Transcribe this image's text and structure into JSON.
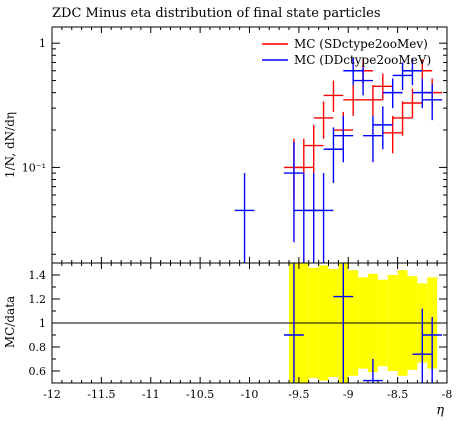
{
  "chart_data": [
    {
      "type": "scatter",
      "panel": "main",
      "title": "ZDC Minus eta distribution of final state particles",
      "ylabel": "1/N, dN/dη",
      "xlim": [
        -12,
        -8
      ],
      "ylim": [
        0.017,
        1.35
      ],
      "yscale": "log",
      "ytick_labels": [
        {
          "value": 1,
          "label": "1"
        },
        {
          "value": 0.1,
          "label": "10⁻¹"
        }
      ],
      "legend_position": "top-right",
      "series": [
        {
          "name": "MC (SDctype2ooMev)",
          "color": "#ff0000",
          "points": [
            {
              "x": -9.55,
              "y": 0.1,
              "lo": 0.055,
              "hi": 0.17
            },
            {
              "x": -9.45,
              "y": 0.1,
              "lo": 0.055,
              "hi": 0.17
            },
            {
              "x": -9.35,
              "y": 0.15,
              "lo": 0.09,
              "hi": 0.22
            },
            {
              "x": -9.25,
              "y": 0.25,
              "lo": 0.17,
              "hi": 0.34
            },
            {
              "x": -9.15,
              "y": 0.38,
              "lo": 0.28,
              "hi": 0.5
            },
            {
              "x": -9.05,
              "y": 0.2,
              "lo": 0.14,
              "hi": 0.28
            },
            {
              "x": -8.95,
              "y": 0.35,
              "lo": 0.26,
              "hi": 0.46
            },
            {
              "x": -8.85,
              "y": 0.6,
              "lo": 0.47,
              "hi": 0.74
            },
            {
              "x": -8.75,
              "y": 0.35,
              "lo": 0.26,
              "hi": 0.46
            },
            {
              "x": -8.65,
              "y": 0.45,
              "lo": 0.35,
              "hi": 0.57
            },
            {
              "x": -8.55,
              "y": 0.19,
              "lo": 0.13,
              "hi": 0.26
            },
            {
              "x": -8.45,
              "y": 0.25,
              "lo": 0.18,
              "hi": 0.34
            },
            {
              "x": -8.35,
              "y": 0.33,
              "lo": 0.25,
              "hi": 0.43
            },
            {
              "x": -8.25,
              "y": 0.6,
              "lo": 0.47,
              "hi": 0.74
            },
            {
              "x": -8.15,
              "y": 0.4,
              "lo": 0.3,
              "hi": 0.52
            }
          ]
        },
        {
          "name": "MC (DDctype2ooMeV)",
          "color": "#0000ff",
          "points": [
            {
              "x": -10.05,
              "y": 0.045,
              "lo": 0.017,
              "hi": 0.09
            },
            {
              "x": -9.55,
              "y": 0.09,
              "lo": 0.025,
              "hi": 0.16
            },
            {
              "x": -9.45,
              "y": 0.045,
              "lo": 0.017,
              "hi": 0.09
            },
            {
              "x": -9.35,
              "y": 0.045,
              "lo": 0.017,
              "hi": 0.09
            },
            {
              "x": -9.25,
              "y": 0.045,
              "lo": 0.017,
              "hi": 0.09
            },
            {
              "x": -9.15,
              "y": 0.14,
              "lo": 0.075,
              "hi": 0.21
            },
            {
              "x": -9.05,
              "y": 0.18,
              "lo": 0.11,
              "hi": 0.26
            },
            {
              "x": -8.95,
              "y": 0.6,
              "lo": 0.46,
              "hi": 0.76
            },
            {
              "x": -8.85,
              "y": 0.5,
              "lo": 0.38,
              "hi": 0.64
            },
            {
              "x": -8.75,
              "y": 0.18,
              "lo": 0.11,
              "hi": 0.26
            },
            {
              "x": -8.65,
              "y": 0.22,
              "lo": 0.14,
              "hi": 0.31
            },
            {
              "x": -8.55,
              "y": 0.4,
              "lo": 0.3,
              "hi": 0.52
            },
            {
              "x": -8.45,
              "y": 0.55,
              "lo": 0.42,
              "hi": 0.7
            },
            {
              "x": -8.35,
              "y": 0.6,
              "lo": 0.46,
              "hi": 0.76
            },
            {
              "x": -8.25,
              "y": 0.4,
              "lo": 0.3,
              "hi": 0.52
            },
            {
              "x": -8.15,
              "y": 0.35,
              "lo": 0.24,
              "hi": 0.47
            }
          ]
        }
      ]
    },
    {
      "type": "scatter",
      "panel": "ratio",
      "ylabel": "MC/data",
      "xlabel": "η",
      "xlim": [
        -12,
        -8
      ],
      "ylim": [
        0.5,
        1.5
      ],
      "x_tick_labels": [
        "-12",
        "-11.5",
        "-11",
        "-10.5",
        "-10",
        "-9.5",
        "-9",
        "-8.5",
        "-8"
      ],
      "y_tick_labels": [
        "0.6",
        "0.8",
        "1",
        "1.2",
        "1.4"
      ],
      "reference_line": 1,
      "band_color": "#ffff00",
      "band": [
        {
          "x0": -9.6,
          "x1": -9.5,
          "lo": 0.5,
          "hi": 1.5
        },
        {
          "x0": -9.5,
          "x1": -9.4,
          "lo": 0.5,
          "hi": 1.5
        },
        {
          "x0": -9.4,
          "x1": -9.3,
          "lo": 0.54,
          "hi": 1.46
        },
        {
          "x0": -9.3,
          "x1": -9.2,
          "lo": 0.52,
          "hi": 1.48
        },
        {
          "x0": -9.2,
          "x1": -9.1,
          "lo": 0.55,
          "hi": 1.45
        },
        {
          "x0": -9.1,
          "x1": -9.0,
          "lo": 0.5,
          "hi": 1.5
        },
        {
          "x0": -9.0,
          "x1": -8.9,
          "lo": 0.56,
          "hi": 1.44
        },
        {
          "x0": -8.9,
          "x1": -8.8,
          "lo": 0.62,
          "hi": 1.38
        },
        {
          "x0": -8.8,
          "x1": -8.7,
          "lo": 0.59,
          "hi": 1.41
        },
        {
          "x0": -8.7,
          "x1": -8.6,
          "lo": 0.64,
          "hi": 1.36
        },
        {
          "x0": -8.6,
          "x1": -8.5,
          "lo": 0.6,
          "hi": 1.4
        },
        {
          "x0": -8.5,
          "x1": -8.4,
          "lo": 0.56,
          "hi": 1.44
        },
        {
          "x0": -8.4,
          "x1": -8.3,
          "lo": 0.61,
          "hi": 1.39
        },
        {
          "x0": -8.3,
          "x1": -8.2,
          "lo": 0.67,
          "hi": 1.33
        },
        {
          "x0": -8.2,
          "x1": -8.1,
          "lo": 0.62,
          "hi": 1.38
        }
      ],
      "series": [
        {
          "name": "MC (DDctype2ooMeV)",
          "color": "#0000ff",
          "points": [
            {
              "x": -9.55,
              "y": 0.9,
              "lo": 0.5,
              "hi": 1.5
            },
            {
              "x": -9.05,
              "y": 1.22,
              "lo": 0.5,
              "hi": 1.5
            },
            {
              "x": -8.75,
              "y": 0.52,
              "lo": 0.5,
              "hi": 0.7
            },
            {
              "x": -8.25,
              "y": 0.74,
              "lo": 0.5,
              "hi": 1.12
            },
            {
              "x": -8.15,
              "y": 0.9,
              "lo": 0.5,
              "hi": 1.05
            }
          ]
        }
      ]
    }
  ]
}
